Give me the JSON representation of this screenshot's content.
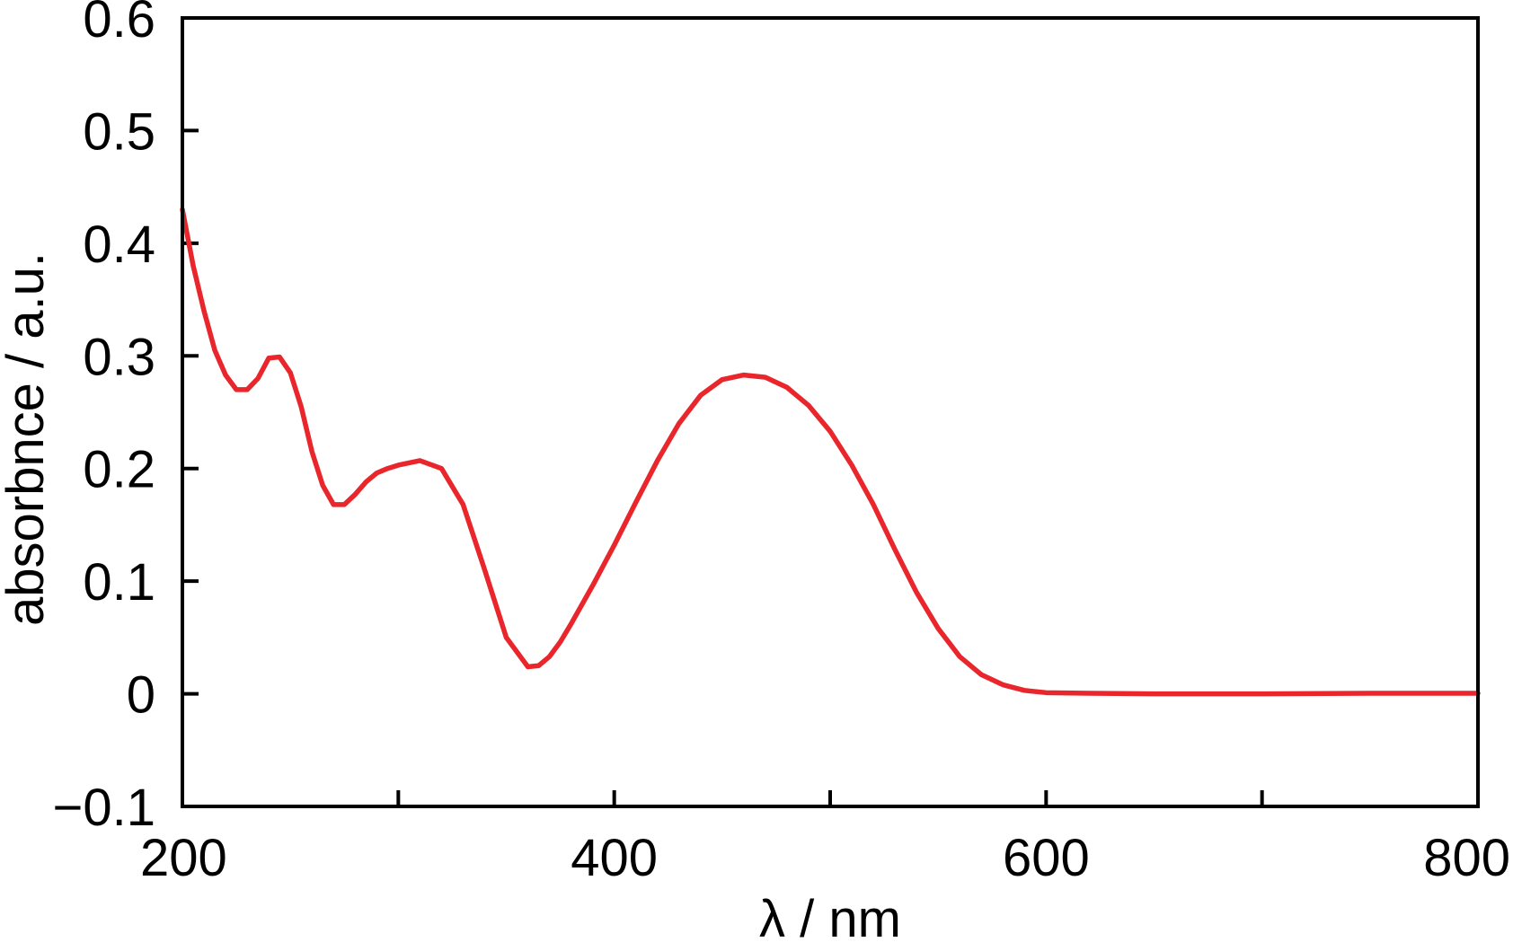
{
  "chart_data": {
    "type": "line",
    "title": "",
    "xlabel": "λ / nm",
    "ylabel": "absorbnce / a.u.",
    "xlim": [
      200,
      800
    ],
    "ylim": [
      -0.1,
      0.6
    ],
    "x_ticks": [
      200,
      300,
      400,
      500,
      600,
      700,
      800
    ],
    "x_tick_labels": [
      "200",
      "",
      "400",
      "",
      "600",
      "",
      "800"
    ],
    "y_ticks": [
      -0.1,
      0,
      0.1,
      0.2,
      0.3,
      0.4,
      0.5,
      0.6
    ],
    "y_tick_labels": [
      "−0.1",
      "0",
      "0.1",
      "0.2",
      "0.3",
      "0.4",
      "0.5",
      "0.6"
    ],
    "grid": false,
    "series": [
      {
        "color": "#e8262b",
        "x": [
          200,
          205,
          210,
          215,
          220,
          225,
          230,
          235,
          240,
          245,
          250,
          255,
          260,
          265,
          270,
          275,
          280,
          285,
          290,
          295,
          300,
          310,
          320,
          330,
          340,
          350,
          360,
          365,
          370,
          375,
          380,
          390,
          400,
          410,
          420,
          430,
          440,
          450,
          460,
          470,
          480,
          490,
          500,
          510,
          520,
          530,
          540,
          550,
          560,
          570,
          580,
          590,
          600,
          620,
          650,
          700,
          750,
          800
        ],
        "y": [
          0.43,
          0.38,
          0.34,
          0.305,
          0.283,
          0.27,
          0.27,
          0.28,
          0.298,
          0.299,
          0.285,
          0.255,
          0.215,
          0.185,
          0.168,
          0.168,
          0.177,
          0.188,
          0.196,
          0.2,
          0.203,
          0.207,
          0.2,
          0.168,
          0.11,
          0.05,
          0.024,
          0.025,
          0.033,
          0.046,
          0.062,
          0.096,
          0.132,
          0.17,
          0.207,
          0.24,
          0.265,
          0.279,
          0.283,
          0.281,
          0.272,
          0.256,
          0.233,
          0.203,
          0.168,
          0.128,
          0.09,
          0.058,
          0.033,
          0.017,
          0.008,
          0.003,
          0.001,
          0.0005,
          0.0,
          0.0,
          0.0005,
          0.0005
        ]
      }
    ]
  }
}
